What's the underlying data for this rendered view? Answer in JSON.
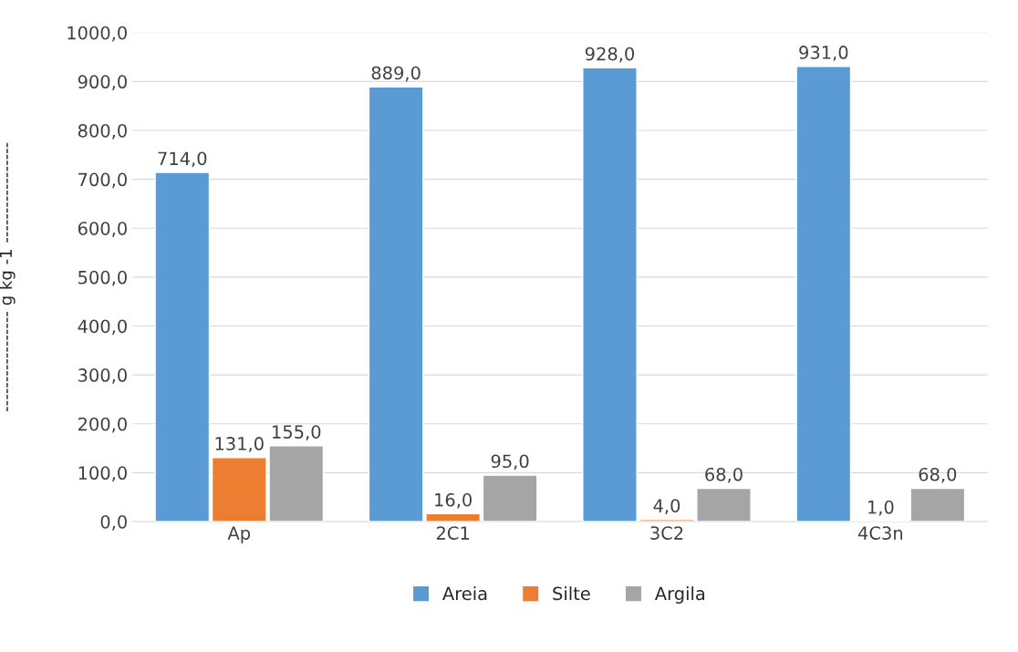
{
  "chart_data": {
    "type": "bar",
    "ylabel": "----------------- g kg -1 -----------------",
    "categories": [
      "Ap",
      "2C1",
      "3C2",
      "4C3n"
    ],
    "series": [
      {
        "name": "Areia",
        "color": "#5b9bd5",
        "values": [
          714,
          889,
          928,
          931
        ],
        "value_labels": [
          "714,0",
          "889,0",
          "928,0",
          "931,0"
        ]
      },
      {
        "name": "Silte",
        "color": "#ed7d31",
        "values": [
          131,
          16,
          4,
          1
        ],
        "value_labels": [
          "131,0",
          "16,0",
          "4,0",
          "1,0"
        ]
      },
      {
        "name": "Argila",
        "color": "#a5a5a5",
        "values": [
          155,
          95,
          68,
          68
        ],
        "value_labels": [
          "155,0",
          "95,0",
          "68,0",
          "68,0"
        ]
      }
    ],
    "ylim": [
      0,
      1000
    ],
    "yticks": [
      {
        "value": 0,
        "label": "0,0"
      },
      {
        "value": 100,
        "label": "100,0"
      },
      {
        "value": 200,
        "label": "200,0"
      },
      {
        "value": 300,
        "label": "300,0"
      },
      {
        "value": 400,
        "label": "400,0"
      },
      {
        "value": 500,
        "label": "500,0"
      },
      {
        "value": 600,
        "label": "600,0"
      },
      {
        "value": 700,
        "label": "700,0"
      },
      {
        "value": 800,
        "label": "800,0"
      },
      {
        "value": 900,
        "label": "900,0"
      },
      {
        "value": 1000,
        "label": "1000,0"
      }
    ],
    "grid": "y",
    "legend": "bottom"
  }
}
